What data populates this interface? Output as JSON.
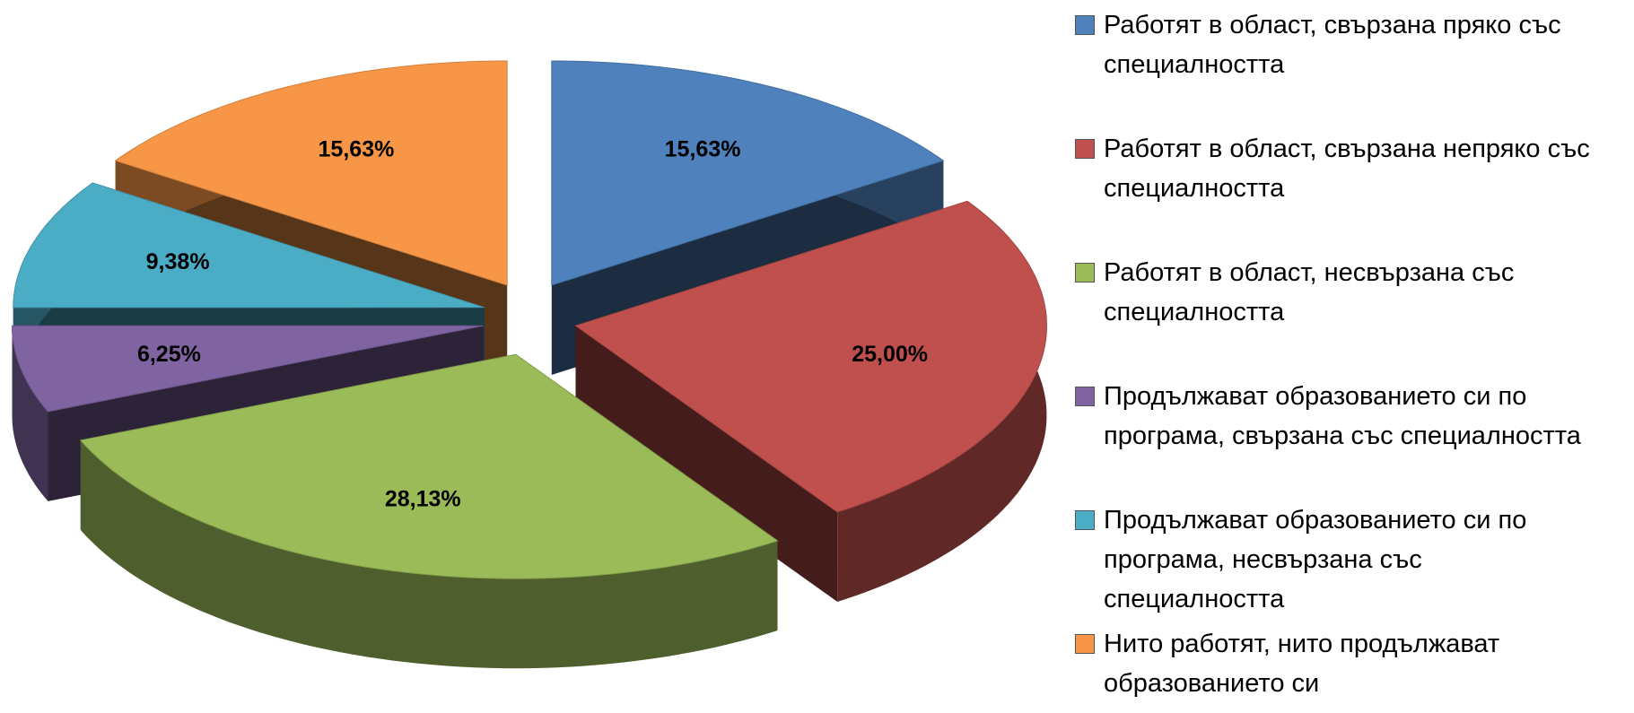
{
  "chart_data": {
    "type": "pie3d",
    "categories": [
      "Работят в област, свързана пряко със специалността",
      "Работят в област, свързана непряко със специалността",
      "Работят в област, несвързана със специалността",
      "Продължават образованието си по програма, свързана със специалността",
      "Продължават образованието си по програма, несвързана със специалността",
      "Нито работят, нито продължават образованието си"
    ],
    "values": [
      15.63,
      25.0,
      28.13,
      6.25,
      9.38,
      15.63
    ],
    "value_labels": [
      "15,63%",
      "25,00%",
      "28,13%",
      "6,25%",
      "9,38%",
      "15,63%"
    ],
    "colors": [
      "#4f81bd",
      "#c0504d",
      "#9bbb59",
      "#8064a2",
      "#4bacc6",
      "#f79646"
    ],
    "legend": "right"
  }
}
